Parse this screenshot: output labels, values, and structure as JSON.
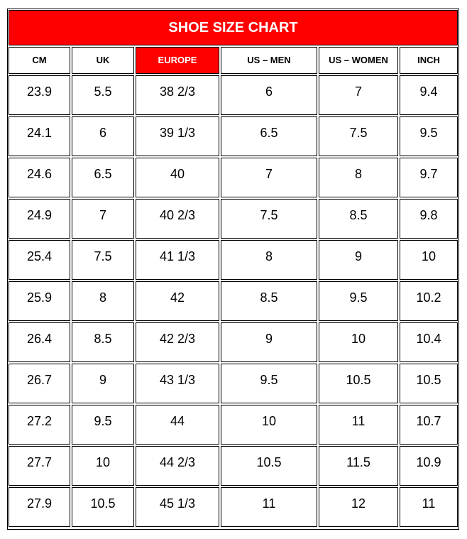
{
  "title": "SHOE SIZE CHART",
  "table": {
    "headers": [
      "CM",
      "UK",
      "EUROPE",
      "US – MEN",
      "US – WOMEN",
      "INCH"
    ],
    "rows": [
      [
        "23.9",
        "5.5",
        "38 2/3",
        "6",
        "7",
        "9.4"
      ],
      [
        "24.1",
        "6",
        "39 1/3",
        "6.5",
        "7.5",
        "9.5"
      ],
      [
        "24.6",
        "6.5",
        "40",
        "7",
        "8",
        "9.7"
      ],
      [
        "24.9",
        "7",
        "40 2/3",
        "7.5",
        "8.5",
        "9.8"
      ],
      [
        "25.4",
        "7.5",
        "41 1/3",
        "8",
        "9",
        "10"
      ],
      [
        "25.9",
        "8",
        "42",
        "8.5",
        "9.5",
        "10.2"
      ],
      [
        "26.4",
        "8.5",
        "42 2/3",
        "9",
        "10",
        "10.4"
      ],
      [
        "26.7",
        "9",
        "43 1/3",
        "9.5",
        "10.5",
        "10.5"
      ],
      [
        "27.2",
        "9.5",
        "44",
        "10",
        "11",
        "10.7"
      ],
      [
        "27.7",
        "10",
        "44 2/3",
        "10.5",
        "11.5",
        "10.9"
      ],
      [
        "27.9",
        "10.5",
        "45 1/3",
        "11",
        "12",
        "11"
      ]
    ]
  }
}
